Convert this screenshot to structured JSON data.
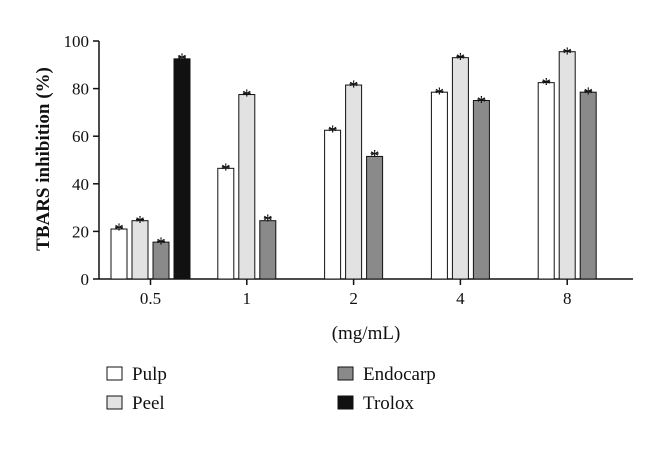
{
  "chart_data": {
    "type": "bar",
    "title": "",
    "xlabel": "(mg/mL)",
    "ylabel": "TBARS inhibition (%)",
    "ylim": [
      0,
      100
    ],
    "yticks": [
      0,
      20,
      40,
      60,
      80,
      100
    ],
    "categories": [
      "0.5",
      "1",
      "2",
      "4",
      "8"
    ],
    "series": [
      {
        "name": "Pulp",
        "color": "#ffffff",
        "values": [
          21,
          46.5,
          62.5,
          78.5,
          82.5
        ],
        "errors": [
          0.8,
          0.6,
          0.6,
          0.4,
          0.5
        ],
        "significance": [
          "*",
          "*",
          "*",
          "*",
          "*"
        ]
      },
      {
        "name": "Peel",
        "color": "#e2e2e2",
        "values": [
          24.5,
          77.5,
          81.5,
          93,
          95.5
        ],
        "errors": [
          0.5,
          0.6,
          0.5,
          0.5,
          0.4
        ],
        "significance": [
          "*",
          "*",
          "*",
          "*",
          "*"
        ]
      },
      {
        "name": "Endocarp",
        "color": "#8a8a8a",
        "values": [
          15.5,
          24.5,
          51.5,
          75,
          78.5
        ],
        "errors": [
          0.4,
          1.2,
          1.3,
          0.5,
          0.5
        ],
        "significance": [
          "*",
          "*",
          "*",
          "*",
          "*"
        ]
      },
      {
        "name": "Trolox",
        "color": "#111111",
        "values": [
          92.5,
          null,
          null,
          null,
          null
        ],
        "errors": [
          0.8,
          null,
          null,
          null,
          null
        ],
        "significance": [
          "*",
          null,
          null,
          null,
          null
        ]
      }
    ],
    "legend": {
      "placement": "bottom",
      "columns": [
        [
          "Pulp",
          "Peel"
        ],
        [
          "Endocarp",
          "Trolox"
        ]
      ]
    }
  }
}
